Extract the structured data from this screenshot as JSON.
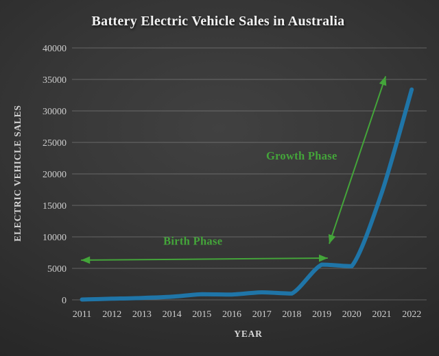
{
  "slide": {
    "background_center_color": "#414141",
    "background_edge_color": "#1f1f1f"
  },
  "chart_data": {
    "type": "line",
    "title": "Battery Electric Vehicle Sales in Australia",
    "xlabel": "YEAR",
    "ylabel": "ELECTRIC VEHICLE SALES",
    "categories": [
      "2011",
      "2012",
      "2013",
      "2014",
      "2015",
      "2016",
      "2017",
      "2018",
      "2019",
      "2020",
      "2021",
      "2022"
    ],
    "series": [
      {
        "name": "Battery Electric Vehicle Sales",
        "color": "#1f75a8",
        "values": [
          50,
          180,
          300,
          500,
          900,
          850,
          1200,
          1000,
          5600,
          5350,
          17000,
          33400
        ]
      }
    ],
    "ylim": [
      0,
      40000
    ],
    "ytick_step": 5000,
    "ytick_labels": [
      "0",
      "5000",
      "10000",
      "15000",
      "20000",
      "25000",
      "30000",
      "35000",
      "40000"
    ],
    "grid": "horizontal",
    "legend": "none",
    "text_color": "#cecece",
    "title_color": "#f2f2f2",
    "annotations": [
      {
        "id": "birth-phase",
        "label": "Birth Phase",
        "color": "#44a53a",
        "label_x": 2014.7,
        "label_y": 9350,
        "arrow": {
          "x1": 2010.97,
          "y1": 6300,
          "x2": 2019.2,
          "y2": 6630,
          "two_headed": true
        }
      },
      {
        "id": "growth-phase",
        "label": "Growth Phase",
        "color": "#44a53a",
        "label_x": 2018.33,
        "label_y": 22900,
        "arrow": {
          "x1": 2019.25,
          "y1": 8900,
          "x2": 2021.13,
          "y2": 35500,
          "two_headed": true
        }
      }
    ]
  }
}
